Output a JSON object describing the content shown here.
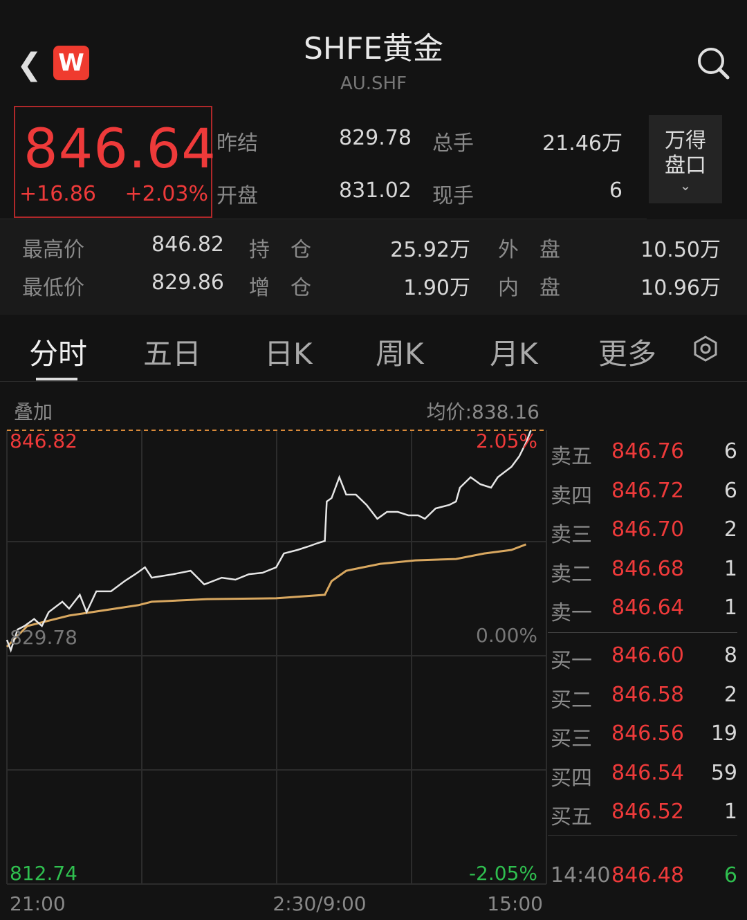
{
  "header": {
    "title": "SHFE黄金",
    "code": "AU.SHF",
    "back_icon": "chevron-left-icon",
    "logo": "W",
    "search_icon": "search-icon"
  },
  "quote": {
    "price": "846.64",
    "change": "+16.86",
    "change_pct": "+2.03%",
    "fields": [
      {
        "label": "昨结",
        "value": "829.78"
      },
      {
        "label": "总手",
        "value": "21.46万"
      },
      {
        "label": "开盘",
        "value": "831.02"
      },
      {
        "label": "现手",
        "value": "6"
      }
    ],
    "wande_button": "万得\n盘口",
    "stats": [
      {
        "label": "最高价",
        "value": "846.82"
      },
      {
        "label": "持　仓",
        "value": "25.92万"
      },
      {
        "label": "外　盘",
        "value": "10.50万"
      },
      {
        "label": "最低价",
        "value": "829.86"
      },
      {
        "label": "增　仓",
        "value": "1.90万"
      },
      {
        "label": "内　盘",
        "value": "10.96万"
      }
    ]
  },
  "tabs": [
    {
      "label": "分时"
    },
    {
      "label": "五日"
    },
    {
      "label": "日K"
    },
    {
      "label": "周K"
    },
    {
      "label": "月K"
    },
    {
      "label": "更多"
    }
  ],
  "active_tab": "分时",
  "chart_header": {
    "overlay": "叠加",
    "avg_price": "均价:838.16"
  },
  "chart_data": {
    "type": "line",
    "ylim": [
      812.74,
      846.82
    ],
    "y_labels": {
      "top": "846.82",
      "mid": "829.78",
      "bottom": "812.74"
    },
    "pct_labels": {
      "top": "2.05%",
      "mid": "0.00%",
      "bottom": "-2.05%"
    },
    "x_labels": [
      "21:00",
      "2:30/9:00",
      "15:00"
    ],
    "x_range_minutes": [
      0,
      555
    ],
    "colors": {
      "price": "#e6e6e6",
      "avg": "#d9a860",
      "up": "#ee3a3a",
      "down": "#2fbf4f"
    },
    "series": [
      {
        "points": [
          [
            0,
            831.08
          ],
          [
            4,
            830.3
          ],
          [
            11,
            831.86
          ],
          [
            18,
            832.12
          ],
          [
            28,
            832.64
          ],
          [
            36,
            832.12
          ],
          [
            43,
            833.16
          ],
          [
            57,
            833.94
          ],
          [
            64,
            833.42
          ],
          [
            75,
            834.46
          ],
          [
            82,
            833.16
          ],
          [
            92,
            834.72
          ],
          [
            107,
            834.72
          ],
          [
            121,
            835.49
          ],
          [
            132,
            836.01
          ],
          [
            142,
            836.53
          ],
          [
            149,
            835.75
          ],
          [
            171,
            836.01
          ],
          [
            189,
            836.27
          ],
          [
            203,
            835.24
          ],
          [
            221,
            835.75
          ],
          [
            235,
            835.6
          ],
          [
            249,
            836.01
          ],
          [
            263,
            836.12
          ],
          [
            277,
            836.53
          ],
          [
            285,
            837.57
          ],
          [
            299,
            837.83
          ],
          [
            310,
            838.09
          ],
          [
            320,
            838.35
          ],
          [
            327,
            838.51
          ],
          [
            329,
            841.47
          ],
          [
            334,
            841.73
          ],
          [
            342,
            843.29
          ],
          [
            349,
            841.99
          ],
          [
            359,
            841.99
          ],
          [
            370,
            841.21
          ],
          [
            381,
            840.17
          ],
          [
            391,
            840.69
          ],
          [
            402,
            840.69
          ],
          [
            413,
            840.43
          ],
          [
            423,
            840.43
          ],
          [
            430,
            840.17
          ],
          [
            441,
            840.95
          ],
          [
            455,
            841.21
          ],
          [
            462,
            841.47
          ],
          [
            466,
            842.51
          ],
          [
            477,
            843.29
          ],
          [
            487,
            842.77
          ],
          [
            498,
            842.51
          ],
          [
            505,
            843.29
          ],
          [
            519,
            844.07
          ],
          [
            527,
            844.85
          ],
          [
            534,
            845.88
          ],
          [
            539,
            846.82
          ]
        ]
      },
      {
        "points": [
          [
            0,
            830.56
          ],
          [
            21,
            832.12
          ],
          [
            64,
            832.9
          ],
          [
            135,
            833.68
          ],
          [
            149,
            833.94
          ],
          [
            206,
            834.14
          ],
          [
            277,
            834.2
          ],
          [
            327,
            834.46
          ],
          [
            334,
            835.49
          ],
          [
            349,
            836.27
          ],
          [
            384,
            836.79
          ],
          [
            420,
            837.05
          ],
          [
            462,
            837.15
          ],
          [
            491,
            837.57
          ],
          [
            519,
            837.83
          ],
          [
            534,
            838.25
          ]
        ]
      }
    ]
  },
  "order_book": {
    "asks": [
      {
        "label": "卖五",
        "price": "846.76",
        "vol": "6"
      },
      {
        "label": "卖四",
        "price": "846.72",
        "vol": "6"
      },
      {
        "label": "卖三",
        "price": "846.70",
        "vol": "2"
      },
      {
        "label": "卖二",
        "price": "846.68",
        "vol": "1"
      },
      {
        "label": "卖一",
        "price": "846.64",
        "vol": "1"
      }
    ],
    "bids": [
      {
        "label": "买一",
        "price": "846.60",
        "vol": "8"
      },
      {
        "label": "买二",
        "price": "846.58",
        "vol": "2"
      },
      {
        "label": "买三",
        "price": "846.56",
        "vol": "19"
      },
      {
        "label": "买四",
        "price": "846.54",
        "vol": "59"
      },
      {
        "label": "买五",
        "price": "846.52",
        "vol": "1"
      }
    ],
    "ticks": [
      {
        "time": "14:40",
        "price": "846.48",
        "vol": "6"
      }
    ]
  }
}
